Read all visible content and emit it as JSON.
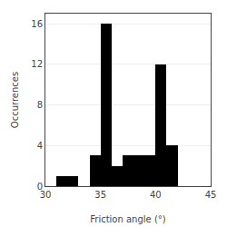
{
  "chart_data": {
    "type": "histogram",
    "bins": [
      30,
      31,
      32,
      33,
      34,
      35,
      36,
      37,
      38,
      39,
      40,
      41,
      42,
      43,
      44,
      45
    ],
    "values": [
      0,
      1,
      1,
      0,
      3,
      16,
      2,
      3,
      3,
      3,
      12,
      4,
      0,
      0,
      0
    ],
    "color": "#000000",
    "xlabel": "Friction angle (°)",
    "ylabel": "Occurrences",
    "xlim": [
      30,
      45
    ],
    "ylim": [
      0,
      17
    ],
    "xticks": [
      30,
      35,
      40,
      45
    ],
    "yticks": [
      0,
      4,
      8,
      12,
      16
    ],
    "grid": "y"
  }
}
